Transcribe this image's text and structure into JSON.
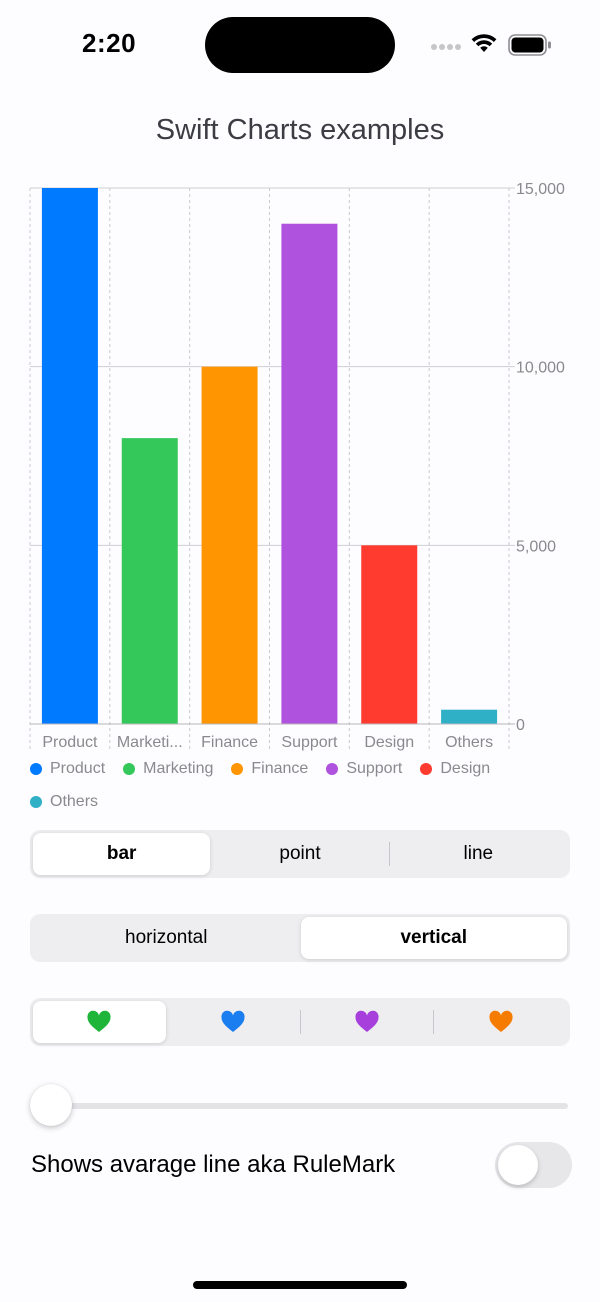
{
  "status_bar": {
    "time": "2:20",
    "icons": [
      "signal-icon",
      "wifi-icon",
      "battery-icon"
    ]
  },
  "page": {
    "title": "Swift Charts examples"
  },
  "chart_data": {
    "type": "bar",
    "categories": [
      "Product",
      "Marketing",
      "Finance",
      "Support",
      "Design",
      "Others"
    ],
    "category_tick_labels": [
      "Product",
      "Marketi...",
      "Finance",
      "Support",
      "Design",
      "Others"
    ],
    "values": [
      15000,
      8000,
      10000,
      14000,
      5000,
      400
    ],
    "colors": [
      "#007aff",
      "#34c759",
      "#ff9500",
      "#af52de",
      "#ff3b30",
      "#30b0c7"
    ],
    "ylim": [
      0,
      15000
    ],
    "yticks": [
      0,
      5000,
      10000,
      15000
    ],
    "ytick_labels": [
      "0",
      "5,000",
      "10,000",
      "15,000"
    ],
    "yaxis_position": "right",
    "grid": true,
    "legend": {
      "position": "bottom",
      "entries": [
        "Product",
        "Marketing",
        "Finance",
        "Support",
        "Design",
        "Others"
      ]
    }
  },
  "controls": {
    "chart_type": {
      "options": [
        "bar",
        "point",
        "line"
      ],
      "selected": "bar"
    },
    "orientation": {
      "options": [
        "horizontal",
        "vertical"
      ],
      "selected": "vertical"
    },
    "color_theme": {
      "options": [
        "green-heart-icon",
        "blue-heart-icon",
        "purple-heart-icon",
        "orange-heart-icon"
      ],
      "colors": [
        "#1fb53b",
        "#1a7df0",
        "#a63fdc",
        "#f57c00"
      ],
      "selected": 0
    },
    "slider": {
      "value": 0
    },
    "rule_mark_toggle": {
      "label": "Shows avarage line aka RuleMark",
      "on": false
    }
  }
}
